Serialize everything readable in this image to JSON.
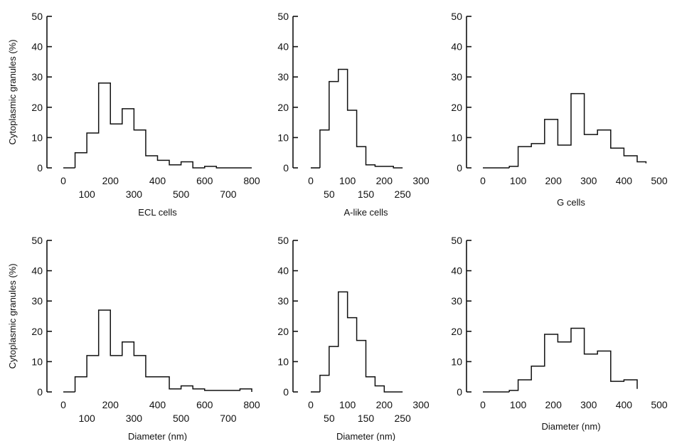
{
  "ylabel": "Cytoplasmic granules (%)",
  "chart_data": [
    {
      "type": "bar",
      "histogram": true,
      "xlabel": "ECL cells",
      "ylabel": "Cytoplasmic granules (%)",
      "ylim": [
        0,
        50
      ],
      "yticks": [
        0,
        10,
        20,
        30,
        40,
        50
      ],
      "xlim": [
        0,
        800
      ],
      "xticks_upper": [
        0,
        200,
        400,
        600,
        800
      ],
      "xticks_lower": [
        100,
        300,
        500,
        700
      ],
      "bin_edges": [
        50,
        100,
        150,
        200,
        250,
        300,
        350,
        400,
        450,
        500,
        550,
        600,
        650,
        700,
        750,
        800
      ],
      "values": [
        5,
        11.5,
        28,
        14.5,
        19.5,
        12.5,
        4,
        2.5,
        1,
        2,
        0,
        0.5,
        0,
        0,
        0
      ]
    },
    {
      "type": "bar",
      "histogram": true,
      "xlabel": "A-like cells",
      "ylabel": "",
      "ylim": [
        0,
        50
      ],
      "yticks": [
        0,
        10,
        20,
        30,
        40,
        50
      ],
      "xlim": [
        0,
        300
      ],
      "xticks_upper": [
        0,
        100,
        200,
        300
      ],
      "xticks_lower": [
        50,
        150,
        250
      ],
      "bin_edges": [
        25,
        50,
        75,
        100,
        125,
        150,
        175,
        200,
        225,
        250
      ],
      "values": [
        12.5,
        28.5,
        32.5,
        19,
        7,
        1,
        0.5,
        0.5,
        0
      ]
    },
    {
      "type": "bar",
      "histogram": true,
      "xlabel": "G cells",
      "ylabel": "",
      "ylim": [
        0,
        50
      ],
      "yticks": [
        0,
        10,
        20,
        30,
        40,
        50
      ],
      "xlim": [
        0,
        500
      ],
      "xticks_upper": [
        0,
        100,
        200,
        300,
        400,
        500
      ],
      "xticks_lower": [],
      "bin_edges": [
        75,
        100,
        137.5,
        175,
        212.5,
        250,
        287.5,
        325,
        362.5,
        400,
        437.5,
        462.5
      ],
      "values": [
        0.5,
        7,
        8,
        16,
        7.5,
        24.5,
        11,
        12.5,
        6.5,
        4,
        2,
        1.5
      ]
    },
    {
      "type": "bar",
      "histogram": true,
      "xlabel": "Diameter (nm)",
      "ylabel": "Cytoplasmic granules (%)",
      "ylim": [
        0,
        50
      ],
      "yticks": [
        0,
        10,
        20,
        30,
        40,
        50
      ],
      "xlim": [
        0,
        800
      ],
      "xticks_upper": [
        0,
        200,
        400,
        600,
        800
      ],
      "xticks_lower": [
        100,
        300,
        500,
        700
      ],
      "bin_edges": [
        50,
        100,
        150,
        200,
        250,
        300,
        350,
        400,
        450,
        500,
        550,
        600,
        650,
        700,
        750,
        800
      ],
      "values": [
        5,
        12,
        27,
        12,
        16.5,
        12,
        5,
        5,
        1,
        2,
        1,
        0.5,
        0.5,
        0.5,
        1
      ]
    },
    {
      "type": "bar",
      "histogram": true,
      "xlabel": "Diameter (nm)",
      "ylabel": "",
      "ylim": [
        0,
        50
      ],
      "yticks": [
        0,
        10,
        20,
        30,
        40,
        50
      ],
      "xlim": [
        0,
        300
      ],
      "xticks_upper": [
        0,
        100,
        200,
        300
      ],
      "xticks_lower": [
        50,
        150,
        250
      ],
      "bin_edges": [
        25,
        50,
        75,
        100,
        125,
        150,
        175,
        200,
        225,
        250
      ],
      "values": [
        5.5,
        15,
        33,
        24.5,
        17,
        5,
        2,
        0,
        0
      ]
    },
    {
      "type": "bar",
      "histogram": true,
      "xlabel": "Diameter (nm)",
      "ylabel": "",
      "ylim": [
        0,
        50
      ],
      "yticks": [
        0,
        10,
        20,
        30,
        40,
        50
      ],
      "xlim": [
        0,
        500
      ],
      "xticks_upper": [
        0,
        100,
        200,
        300,
        400,
        500
      ],
      "xticks_lower": [],
      "bin_edges": [
        75,
        100,
        137.5,
        175,
        212.5,
        250,
        287.5,
        325,
        362.5,
        400,
        437.5
      ],
      "values": [
        0.5,
        4,
        8.5,
        19,
        16.5,
        21,
        12.5,
        13.5,
        3.5,
        4,
        1
      ]
    }
  ]
}
